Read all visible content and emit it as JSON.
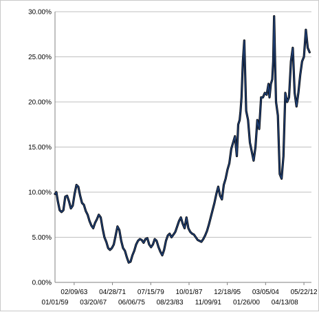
{
  "chart_data": {
    "type": "line",
    "title": "",
    "xlabel": "",
    "ylabel": "",
    "ylim": [
      0,
      30
    ],
    "grid": "horizontal",
    "legend": "none",
    "colors": {
      "line": "#1f3f75",
      "line_dark": "#0a0a0a",
      "grid": "#bfbfbf",
      "axis": "#808080"
    },
    "yticks": [
      "0.00%",
      "5.00%",
      "10.00%",
      "15.00%",
      "20.00%",
      "25.00%",
      "30.00%"
    ],
    "ytick_values": [
      0,
      5,
      10,
      15,
      20,
      25,
      30
    ],
    "xticks_upper": [
      "02/09/63",
      "04/28/71",
      "07/15/79",
      "10/01/87",
      "12/18/95",
      "03/05/04",
      "05/22/12"
    ],
    "xticks_lower": [
      "01/01/59",
      "03/20/67",
      "06/06/75",
      "08/23/83",
      "11/09/91",
      "01/26/00",
      "04/13/08"
    ],
    "xtick_years_upper": [
      1963.11,
      1971.32,
      1979.54,
      1987.75,
      1995.96,
      2004.17,
      2012.39
    ],
    "xtick_years_lower": [
      1959.0,
      1967.22,
      1975.43,
      1983.64,
      1991.86,
      2000.07,
      2008.28
    ],
    "xlim_years": [
      1959.0,
      2014.0
    ],
    "series": [
      {
        "x": [
          1959.0,
          1959.3,
          1959.6,
          1960.0,
          1960.4,
          1960.8,
          1961.2,
          1961.6,
          1962.0,
          1962.4,
          1962.8,
          1963.2,
          1963.6,
          1964.0,
          1964.4,
          1964.8,
          1965.2,
          1965.6,
          1966.0,
          1966.4,
          1966.8,
          1967.2,
          1967.6,
          1968.0,
          1968.4,
          1968.8,
          1969.2,
          1969.6,
          1970.0,
          1970.4,
          1970.8,
          1971.2,
          1971.6,
          1972.0,
          1972.4,
          1972.8,
          1973.2,
          1973.6,
          1974.0,
          1974.4,
          1974.8,
          1975.2,
          1975.6,
          1976.0,
          1976.4,
          1976.8,
          1977.2,
          1977.6,
          1978.0,
          1978.4,
          1978.8,
          1979.2,
          1979.6,
          1980.0,
          1980.4,
          1980.8,
          1981.2,
          1981.6,
          1982.0,
          1982.4,
          1982.8,
          1983.2,
          1983.6,
          1984.0,
          1984.4,
          1984.8,
          1985.2,
          1985.6,
          1986.0,
          1986.4,
          1986.8,
          1987.2,
          1987.6,
          1988.0,
          1988.4,
          1988.8,
          1989.2,
          1989.6,
          1990.0,
          1990.4,
          1990.8,
          1991.2,
          1991.6,
          1992.0,
          1992.4,
          1992.8,
          1993.2,
          1993.6,
          1994.0,
          1994.4,
          1994.8,
          1995.2,
          1995.6,
          1996.0,
          1996.4,
          1996.8,
          1997.2,
          1997.6,
          1998.0,
          1998.3,
          1998.6,
          1998.8,
          1999.0,
          1999.3,
          1999.6,
          2000.0,
          2000.4,
          2000.8,
          2001.2,
          2001.6,
          2002.0,
          2002.4,
          2002.8,
          2003.2,
          2003.6,
          2004.0,
          2004.4,
          2004.8,
          2005.0,
          2005.3,
          2005.6,
          2005.8,
          2006.0,
          2006.2,
          2006.4,
          2006.8,
          2007.2,
          2007.6,
          2008.0,
          2008.4,
          2008.8,
          2009.2,
          2009.6,
          2010.0,
          2010.4,
          2010.8,
          2011.2,
          2011.6,
          2012.0,
          2012.4,
          2012.8,
          2013.2,
          2013.6
        ],
        "y": [
          9.8,
          10.0,
          9.0,
          8.0,
          7.8,
          8.0,
          9.5,
          9.6,
          9.0,
          8.2,
          8.5,
          9.8,
          10.8,
          10.6,
          9.6,
          8.8,
          8.6,
          7.9,
          7.5,
          6.8,
          6.3,
          6.0,
          6.6,
          7.0,
          7.5,
          7.2,
          6.0,
          5.0,
          4.5,
          3.8,
          3.6,
          3.8,
          4.2,
          5.2,
          6.2,
          5.8,
          4.6,
          3.8,
          3.5,
          2.8,
          2.2,
          2.3,
          3.0,
          3.5,
          4.2,
          4.6,
          4.8,
          4.7,
          4.4,
          4.8,
          4.9,
          4.2,
          3.9,
          4.2,
          4.8,
          4.6,
          3.9,
          3.4,
          3.0,
          3.6,
          4.6,
          5.2,
          5.4,
          5.0,
          5.3,
          5.6,
          6.2,
          6.8,
          7.2,
          6.5,
          6.0,
          7.2,
          6.0,
          5.6,
          5.4,
          5.3,
          5.0,
          4.7,
          4.6,
          4.5,
          4.8,
          5.2,
          5.7,
          6.4,
          7.2,
          8.0,
          8.8,
          9.8,
          10.6,
          9.6,
          9.2,
          10.8,
          11.5,
          12.5,
          13.2,
          14.8,
          15.5,
          16.2,
          14.0,
          17.5,
          18.0,
          19.0,
          20.5,
          24.5,
          26.8,
          19.0,
          18.0,
          15.5,
          14.5,
          13.5,
          15.0,
          18.0,
          17.0,
          20.5,
          20.5,
          21.0,
          20.8,
          22.0,
          20.5,
          22.0,
          22.5,
          24.5,
          29.5,
          24.5,
          20.0,
          18.5,
          12.0,
          11.5,
          14.0,
          21.0,
          20.0,
          20.5,
          24.5,
          26.0,
          21.0,
          19.5,
          21.0,
          23.0,
          24.5,
          25.0,
          28.0,
          26.0,
          25.5
        ]
      }
    ]
  }
}
